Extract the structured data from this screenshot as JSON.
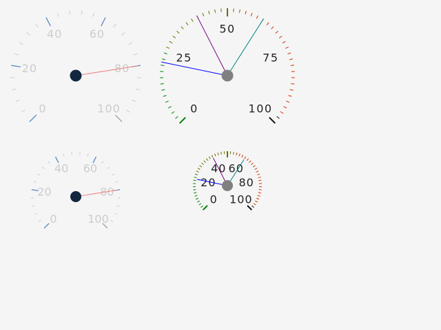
{
  "gauges": [
    {
      "id": "gauge-light-large",
      "style": "light",
      "min": 0,
      "max": 100,
      "labels": [
        "0",
        "20",
        "40",
        "60",
        "80",
        "100"
      ],
      "needles": [
        {
          "value": 80,
          "color": "#f08080"
        }
      ],
      "colors": {
        "tick": "#cccccc",
        "accent": "#4a7fc1",
        "label": "#cccccc",
        "hub": "#12263f",
        "major": "#999999"
      }
    },
    {
      "id": "gauge-dark-large",
      "style": "dark",
      "min": 0,
      "max": 100,
      "labels": [
        "0",
        "25",
        "50",
        "75",
        "100"
      ],
      "needles": [
        {
          "value": 40,
          "color": "#800080"
        },
        {
          "value": 62,
          "color": "#008080"
        },
        {
          "value": 21,
          "color": "#0000ff"
        }
      ],
      "colors": {
        "label": "#222222",
        "hub": "#808080",
        "low": "#008000",
        "mid": "#6b6b00",
        "high": "#cc3300",
        "end": "#111111"
      }
    },
    {
      "id": "gauge-light-small",
      "style": "light",
      "min": 0,
      "max": 100,
      "labels": [
        "0",
        "20",
        "40",
        "60",
        "80",
        "100"
      ],
      "needles": [
        {
          "value": 80,
          "color": "#f08080"
        }
      ],
      "colors": {
        "tick": "#cccccc",
        "accent": "#4a7fc1",
        "label": "#cccccc",
        "hub": "#12263f",
        "major": "#999999"
      }
    },
    {
      "id": "gauge-dark-small",
      "style": "dark",
      "min": 0,
      "max": 100,
      "labels": [
        "0",
        "20",
        "40",
        "60",
        "80",
        "100"
      ],
      "needles": [
        {
          "value": 40,
          "color": "#800080"
        },
        {
          "value": 62,
          "color": "#008080"
        },
        {
          "value": 21,
          "color": "#0000ff"
        }
      ],
      "colors": {
        "label": "#222222",
        "hub": "#808080",
        "low": "#008000",
        "mid": "#6b6b00",
        "high": "#cc3300",
        "end": "#111111"
      }
    }
  ]
}
